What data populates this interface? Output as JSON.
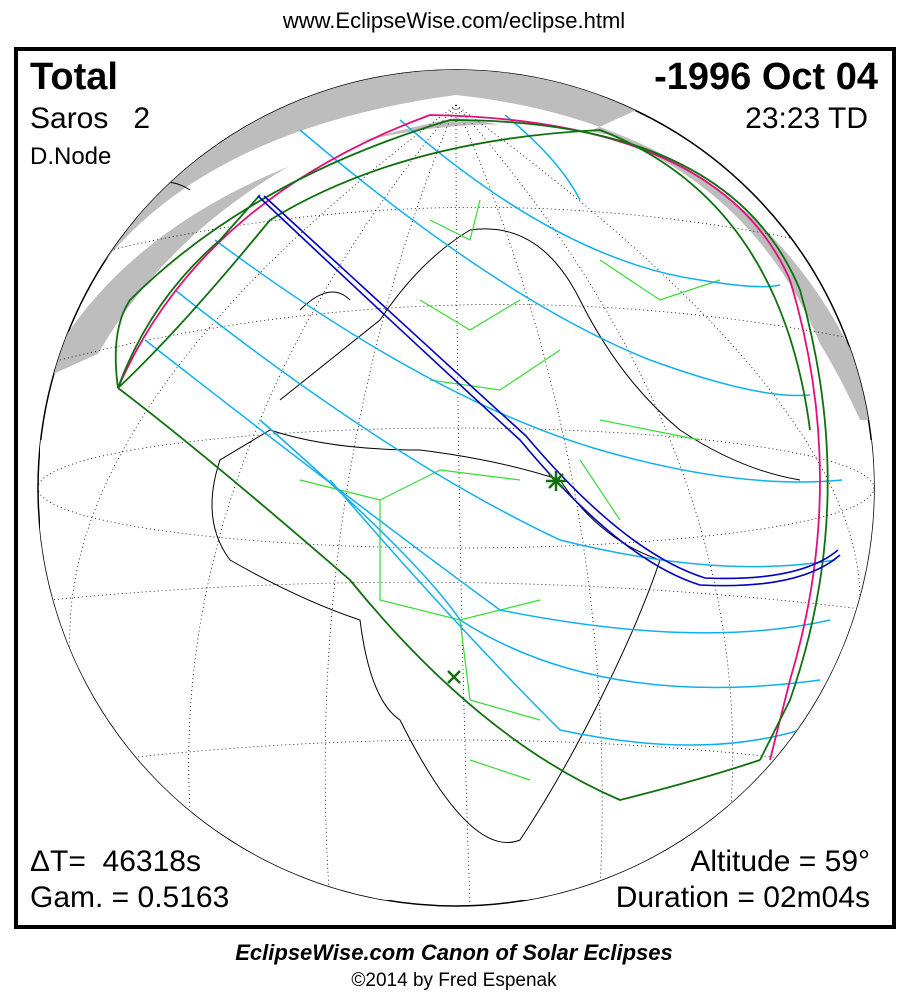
{
  "url": "www.EclipseWise.com/eclipse.html",
  "eclipse": {
    "type": "Total",
    "date": "-1996 Oct 04",
    "saros": "Saros   2",
    "time": "23:23 TD",
    "node": "D.Node",
    "delta_t": "ΔT=  46318s",
    "gamma": "Gam. = 0.5163",
    "altitude": "Altitude = 59°",
    "duration": "Duration = 02m04s"
  },
  "footer": {
    "credit": "EclipseWise.com Canon of Solar Eclipses",
    "copyright": "©2014 by Fred Espenak"
  },
  "colors": {
    "night": "#bdbdbd",
    "borders": "#33dd33",
    "penumbra_lines": "#10b0f0",
    "penumbral_limits": "#107010",
    "rise_set_curve": "#e0107a",
    "central_path": "#0000c0",
    "greatest_eclipse": "#107010"
  },
  "markers": {
    "greatest_eclipse_icon": "star-icon",
    "greatest_duration_icon": "x-icon"
  }
}
